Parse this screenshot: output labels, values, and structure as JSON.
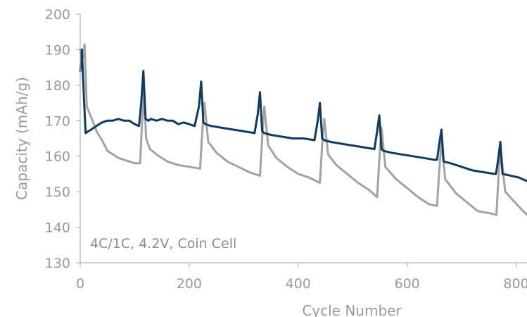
{
  "chart_data": {
    "type": "line",
    "title": "",
    "xlabel": "Cycle Number",
    "ylabel": "Capacity (mAh/g)",
    "xlim": [
      0,
      820
    ],
    "ylim": [
      130,
      200
    ],
    "xticks": [
      "0",
      "200",
      "400",
      "600",
      "800"
    ],
    "yticks": [
      "130",
      "140",
      "150",
      "160",
      "170",
      "180",
      "190",
      "200"
    ],
    "annotation": "4C/1C, 4.2V, Coin Cell",
    "grid": false,
    "legend": "none",
    "colors": {
      "series_1": "#0e3a66",
      "series_2": "#a3a3a3"
    },
    "series": [
      {
        "x": [
          0,
          3,
          7,
          10,
          20,
          30,
          40,
          50,
          60,
          70,
          80,
          90,
          100,
          108,
          112,
          116,
          120,
          125,
          130,
          140,
          150,
          160,
          170,
          180,
          190,
          200,
          210,
          218,
          222,
          226,
          230,
          240,
          260,
          280,
          300,
          320,
          326,
          330,
          334,
          338,
          350,
          370,
          390,
          410,
          430,
          436,
          440,
          444,
          448,
          460,
          480,
          500,
          520,
          540,
          545,
          549,
          553,
          557,
          570,
          590,
          610,
          630,
          650,
          655,
          659,
          663,
          667,
          680,
          700,
          720,
          740,
          760,
          763,
          767,
          771,
          775,
          790,
          805,
          820
        ],
        "values": [
          184,
          190,
          176,
          166.5,
          167.5,
          168.5,
          169.5,
          170,
          170,
          170.5,
          170,
          170,
          169,
          168.5,
          175,
          184,
          170.5,
          170,
          170.5,
          170,
          170.5,
          170,
          170,
          169,
          169.5,
          169,
          168.5,
          174,
          181,
          169.5,
          169,
          168.5,
          168,
          167.5,
          167,
          166.5,
          172,
          178,
          167,
          166.5,
          166,
          165.5,
          165,
          165,
          164.5,
          170,
          175,
          165,
          164.5,
          164,
          163.5,
          163,
          162.5,
          162,
          167,
          171.5,
          162,
          161.5,
          161,
          160.5,
          160,
          159.5,
          159,
          159,
          163.5,
          167.5,
          158.5,
          158,
          157,
          156,
          155.5,
          155,
          155,
          159,
          164,
          155,
          154.5,
          154,
          153
        ]
      },
      {
        "x": [
          0,
          3,
          8,
          12,
          20,
          30,
          40,
          50,
          60,
          70,
          80,
          90,
          100,
          110,
          113,
          117,
          121,
          128,
          140,
          160,
          180,
          200,
          220,
          224,
          228,
          235,
          250,
          270,
          290,
          310,
          330,
          334,
          338,
          345,
          360,
          380,
          400,
          420,
          440,
          444,
          448,
          455,
          470,
          490,
          510,
          530,
          545,
          549,
          553,
          560,
          580,
          600,
          620,
          640,
          655,
          659,
          663,
          670,
          690,
          710,
          730,
          750,
          764,
          768,
          772,
          780,
          795,
          810,
          820
        ],
        "values": [
          190,
          186,
          191.5,
          174,
          171,
          167,
          164.5,
          161.5,
          160.5,
          159.5,
          159,
          158.5,
          158,
          158,
          168,
          178,
          165,
          162,
          160.5,
          158.5,
          157.5,
          157,
          156.5,
          167,
          175,
          164,
          161,
          158.5,
          157,
          155.5,
          154.5,
          165,
          174,
          163,
          159.5,
          157,
          155,
          154,
          152.5,
          163,
          170.5,
          160.5,
          157.5,
          155,
          152.5,
          150.5,
          148.5,
          159,
          168,
          157,
          153.5,
          151,
          148.5,
          146.5,
          146,
          156,
          164,
          153.5,
          149.5,
          147,
          144.5,
          144,
          143.5,
          155,
          161.5,
          150,
          147.5,
          145,
          143.5
        ]
      }
    ]
  }
}
